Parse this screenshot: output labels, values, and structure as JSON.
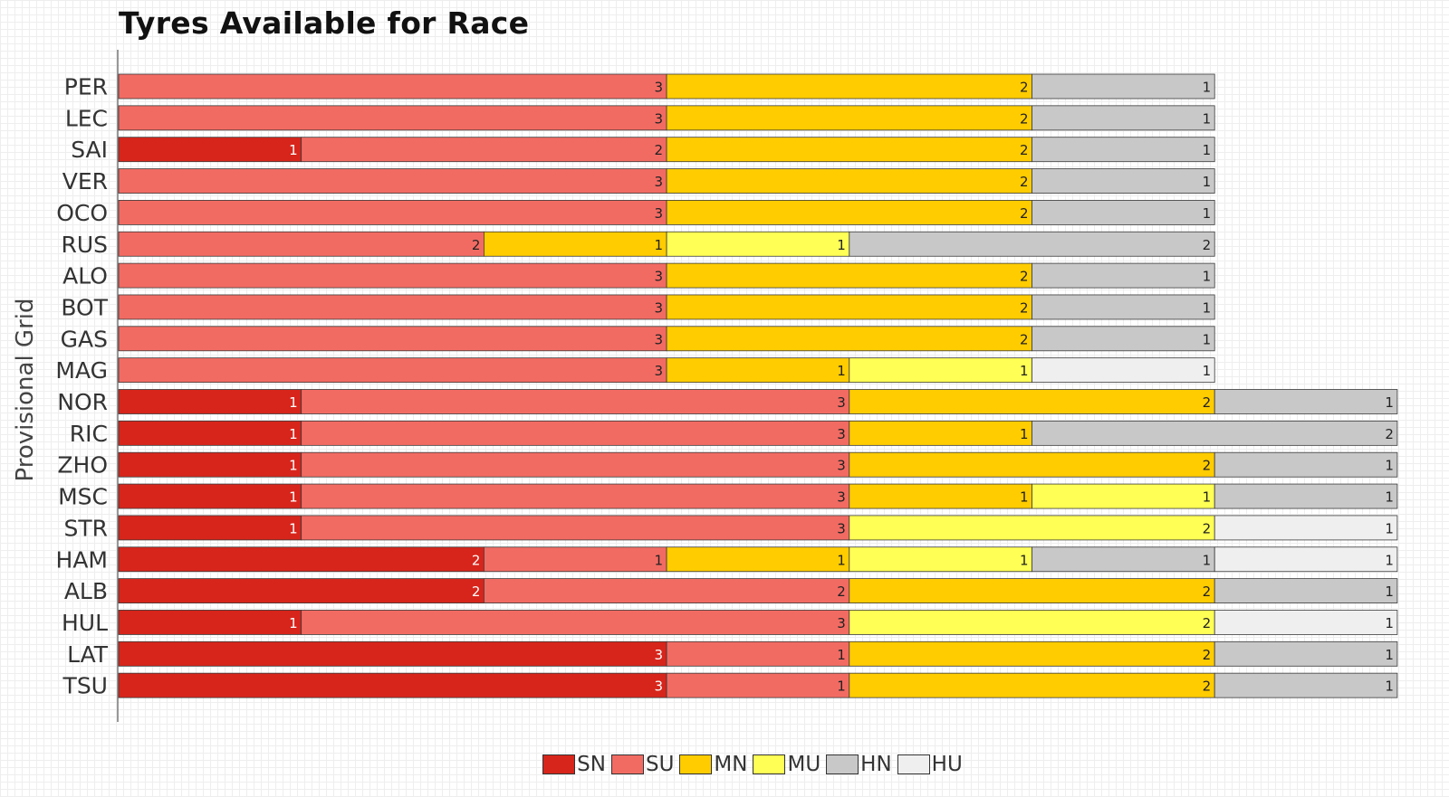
{
  "chart_data": {
    "type": "bar",
    "orientation": "horizontal",
    "stacked": true,
    "title": "Tyres Available for Race",
    "ylabel": "Provisional Grid",
    "xlabel": "",
    "categories": [
      "PER",
      "LEC",
      "SAI",
      "VER",
      "OCO",
      "RUS",
      "ALO",
      "BOT",
      "GAS",
      "MAG",
      "NOR",
      "RIC",
      "ZHO",
      "MSC",
      "STR",
      "HAM",
      "ALB",
      "HUL",
      "LAT",
      "TSU"
    ],
    "series": [
      {
        "name": "SN",
        "color": "#d7251b",
        "values": [
          0,
          0,
          1,
          0,
          0,
          0,
          0,
          0,
          0,
          0,
          1,
          1,
          1,
          1,
          1,
          2,
          2,
          1,
          3,
          3
        ]
      },
      {
        "name": "SU",
        "color": "#f26b63",
        "values": [
          3,
          3,
          2,
          3,
          3,
          2,
          3,
          3,
          3,
          3,
          3,
          3,
          3,
          3,
          3,
          1,
          2,
          3,
          1,
          1
        ]
      },
      {
        "name": "MN",
        "color": "#ffcc00",
        "values": [
          2,
          2,
          2,
          2,
          2,
          1,
          2,
          2,
          2,
          1,
          2,
          1,
          2,
          1,
          0,
          1,
          2,
          0,
          2,
          2
        ]
      },
      {
        "name": "MU",
        "color": "#ffff55",
        "values": [
          0,
          0,
          0,
          0,
          0,
          1,
          0,
          0,
          0,
          1,
          0,
          0,
          0,
          1,
          2,
          1,
          0,
          2,
          0,
          0
        ]
      },
      {
        "name": "HN",
        "color": "#c8c8c8",
        "values": [
          1,
          1,
          1,
          1,
          1,
          2,
          1,
          1,
          1,
          0,
          1,
          2,
          1,
          1,
          0,
          1,
          1,
          0,
          1,
          1
        ]
      },
      {
        "name": "HU",
        "color": "#efefef",
        "values": [
          0,
          0,
          0,
          0,
          0,
          0,
          0,
          0,
          0,
          1,
          0,
          0,
          0,
          0,
          1,
          1,
          0,
          1,
          0,
          0
        ]
      }
    ],
    "grid": true,
    "legend": "bottom"
  }
}
